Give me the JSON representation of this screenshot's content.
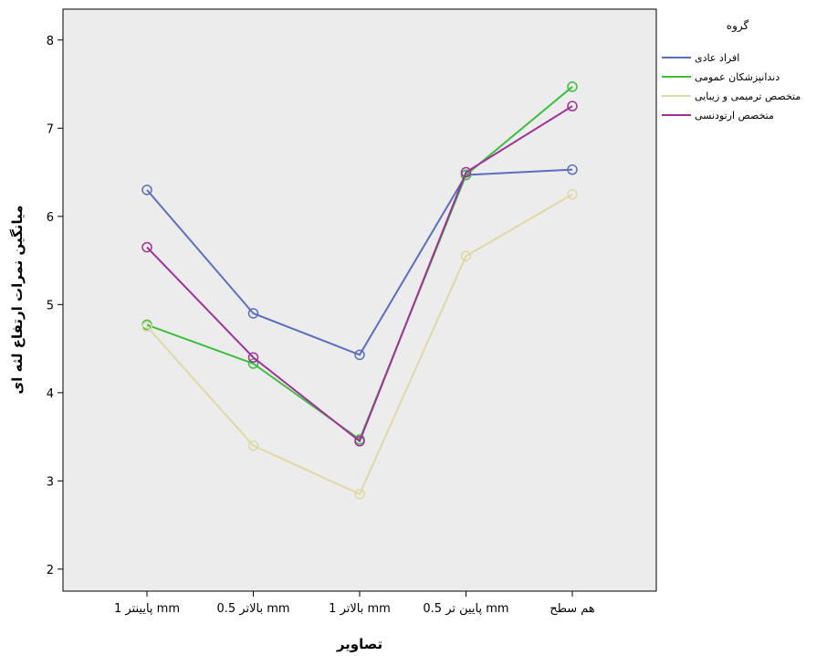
{
  "chart_data": {
    "type": "line",
    "title": "",
    "xlabel": "تصاویر",
    "ylabel": "میانگین نمرات ارتفاع لثه ای",
    "categories": [
      "پایینتر 1 mm",
      "بالاتر 0.5 mm",
      "بالاتر 1 mm",
      "پایین تر 0.5 mm",
      "هم سطح"
    ],
    "y_ticks": [
      2,
      3,
      4,
      5,
      6,
      7,
      8
    ],
    "ylim": [
      1.75,
      8.35
    ],
    "grid": false,
    "plot_background": "#ececec",
    "legend": {
      "title": "گروه",
      "position": "top-right"
    },
    "series": [
      {
        "name": "افراد عادی",
        "color": "#5b6fbf",
        "values": [
          6.3,
          4.9,
          4.43,
          6.47,
          6.53
        ]
      },
      {
        "name": "دندانپزشکان عمومی",
        "color": "#3cbf3c",
        "values": [
          4.77,
          4.33,
          3.47,
          6.47,
          7.47
        ]
      },
      {
        "name": "متخصص ترمیمی و زیبایی",
        "color": "#e0d8a4",
        "values": [
          4.75,
          3.4,
          2.85,
          5.55,
          6.25
        ]
      },
      {
        "name": "متخصص ارتودنسی",
        "color": "#a0309a",
        "values": [
          5.65,
          4.4,
          3.45,
          6.5,
          7.25
        ]
      }
    ]
  }
}
